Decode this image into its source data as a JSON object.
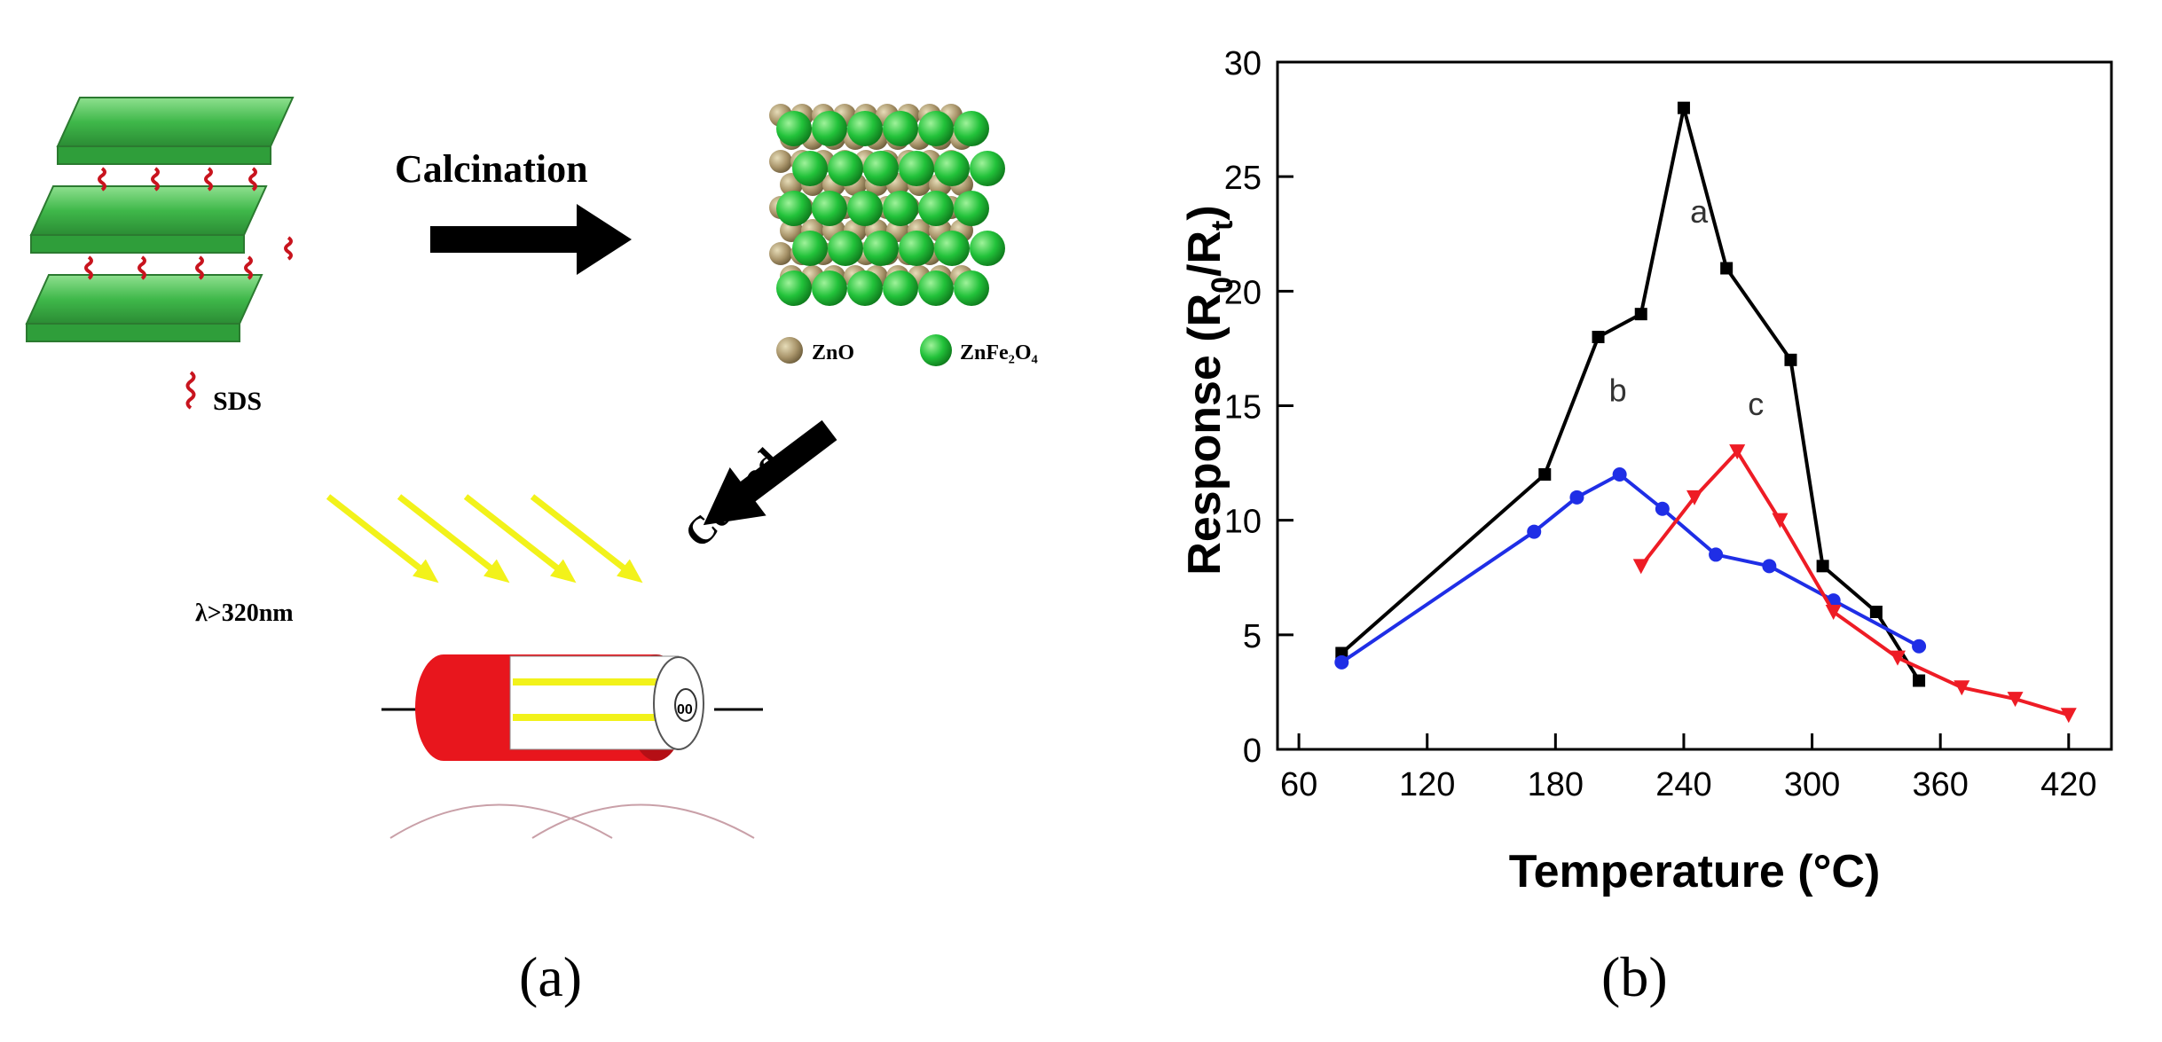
{
  "panel_a": {
    "label": "(a)",
    "step1_label": "Calcination",
    "step2_label": "Coated",
    "legend": [
      {
        "name": "ZnO",
        "color": "#9d8a5e"
      },
      {
        "name": "ZnFe₂O₄",
        "color": "#22c23a"
      }
    ],
    "surfactant_label": "SDS",
    "light_label": "λ>320nm",
    "colors": {
      "lds_green": "#4fc25a",
      "sds_red": "#c8141e",
      "light_yellow": "#f2f21a",
      "tube_red": "#e8161d"
    }
  },
  "panel_b": {
    "label": "(b)",
    "chart_data": {
      "type": "line",
      "xlabel": "Temperature (°C)",
      "ylabel": "Response (R0/Rt)",
      "xlim": [
        50,
        440
      ],
      "ylim": [
        0,
        30
      ],
      "xticks": [
        60,
        120,
        180,
        240,
        300,
        360,
        420
      ],
      "yticks": [
        0,
        5,
        10,
        15,
        20,
        25,
        30
      ],
      "grid": false,
      "series": [
        {
          "name": "a",
          "color": "#000000",
          "marker": "square",
          "x": [
            80,
            175,
            200,
            220,
            240,
            260,
            290,
            305,
            330,
            350
          ],
          "y": [
            4.2,
            12,
            18,
            19,
            28,
            21,
            17,
            8,
            6,
            3
          ]
        },
        {
          "name": "b",
          "color": "#1f2ee6",
          "marker": "circle",
          "x": [
            80,
            170,
            190,
            210,
            230,
            255,
            280,
            310,
            350
          ],
          "y": [
            3.8,
            9.5,
            11,
            12,
            10.5,
            8.5,
            8,
            6.5,
            4.5
          ]
        },
        {
          "name": "c",
          "color": "#ee1c25",
          "marker": "triangle-down",
          "x": [
            220,
            245,
            265,
            285,
            310,
            340,
            370,
            395,
            420
          ],
          "y": [
            8,
            11,
            13,
            10,
            6,
            4,
            2.7,
            2.2,
            1.5
          ]
        }
      ],
      "series_label_positions": {
        "a": [
          243,
          23
        ],
        "b": [
          205,
          15.2
        ],
        "c": [
          270,
          14.6
        ]
      }
    }
  }
}
